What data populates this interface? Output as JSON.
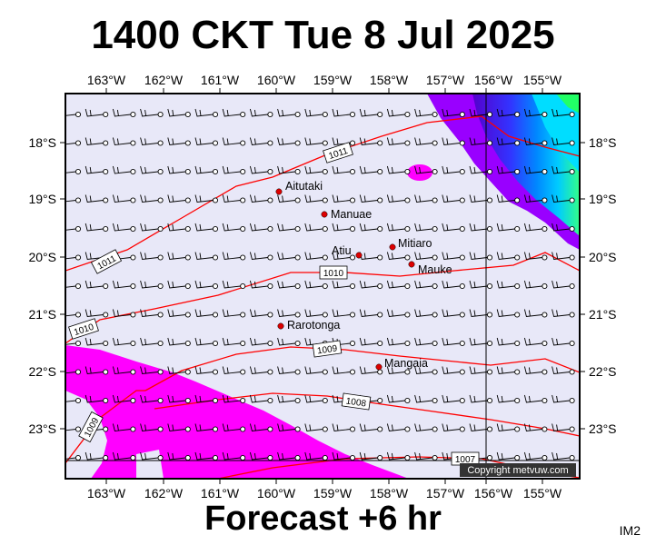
{
  "header": {
    "title": "1400 CKT Tue 8 Jul 2025"
  },
  "footer": {
    "subtitle": "Forecast +6 hr",
    "corner_label": "IM2"
  },
  "map": {
    "copyright": "Copyright metvuw.com",
    "lon_ticks": [
      "163°W",
      "162°W",
      "161°W",
      "160°W",
      "159°W",
      "158°W",
      "157°W",
      "156°W",
      "155°W"
    ],
    "lat_ticks": [
      "18°S",
      "19°S",
      "20°S",
      "21°S",
      "22°S",
      "23°S"
    ],
    "places": [
      {
        "name": "Aitutaki"
      },
      {
        "name": "Manuae"
      },
      {
        "name": "Atiu"
      },
      {
        "name": "Mitiaro"
      },
      {
        "name": "Mauke"
      },
      {
        "name": "Rarotonga"
      },
      {
        "name": "Mangaia"
      }
    ],
    "isobars": [
      "1011",
      "1011",
      "1010",
      "1010",
      "1009",
      "1008",
      "1009",
      "1007"
    ],
    "colors": {
      "background": "#e8e8f8",
      "rain_magenta": "#ff00ff",
      "isobar": "#ff0000",
      "place_dot": "#dd0000",
      "frame": "#000000"
    }
  }
}
